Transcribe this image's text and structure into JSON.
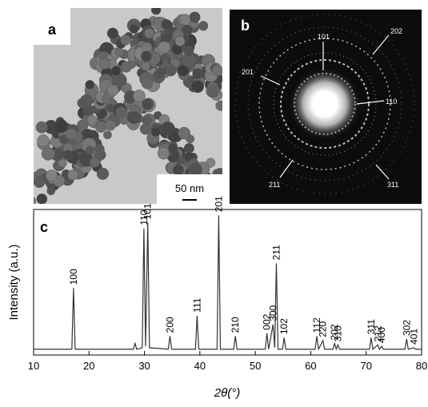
{
  "panels": {
    "a": {
      "label": "a",
      "scale_bar": "50 nm"
    },
    "b": {
      "label": "b",
      "ring_labels": [
        "101",
        "202",
        "201",
        "110",
        "211",
        "311"
      ]
    }
  },
  "chart_data": {
    "type": "line",
    "panel_label": "c",
    "xlabel": "2θ(°)",
    "ylabel": "Intensity (a.u.)",
    "x": [
      10,
      16.9,
      17.2,
      17.5,
      28.0,
      28.3,
      28.6,
      29.6,
      29.9,
      30.2,
      30.6,
      30.9,
      34.3,
      34.6,
      34.9,
      39.2,
      39.5,
      39.8,
      43.1,
      43.4,
      43.7,
      46.1,
      46.4,
      46.7,
      51.8,
      52.1,
      52.4,
      53.2,
      53.5,
      53.8,
      54.1,
      54.9,
      55.2,
      55.5,
      60.8,
      61.1,
      61.4,
      62.2,
      62.5,
      64.0,
      64.3,
      64.6,
      64.9,
      65.2,
      70.6,
      70.9,
      71.2,
      72.1,
      72.4,
      72.8,
      73.1,
      77.0,
      77.3,
      77.6,
      78.6,
      78.9,
      80
    ],
    "values": [
      4,
      4,
      46,
      4,
      4,
      8,
      4,
      5,
      87,
      6,
      91,
      5,
      4,
      13,
      4,
      4,
      27,
      4,
      4,
      96,
      4,
      4,
      13,
      4,
      4,
      15,
      4,
      21,
      5,
      63,
      4,
      4,
      12,
      4,
      4,
      13,
      4,
      10,
      4,
      4,
      8,
      4,
      7,
      4,
      4,
      12,
      4,
      7,
      4,
      6,
      4,
      4,
      11,
      4,
      5,
      4,
      4
    ],
    "color": "#333333",
    "peak_labels": [
      {
        "label": "100",
        "x": 17.2
      },
      {
        "label": "110",
        "x": 29.9
      },
      {
        "label": "101",
        "x": 30.6
      },
      {
        "label": "200",
        "x": 34.6
      },
      {
        "label": "111",
        "x": 39.5
      },
      {
        "label": "201",
        "x": 43.4
      },
      {
        "label": "210",
        "x": 46.4
      },
      {
        "label": "002",
        "x": 52.1
      },
      {
        "label": "300",
        "x": 53.2
      },
      {
        "label": "211",
        "x": 53.8
      },
      {
        "label": "102",
        "x": 55.2
      },
      {
        "label": "112",
        "x": 61.1
      },
      {
        "label": "220",
        "x": 62.2
      },
      {
        "label": "202",
        "x": 64.3
      },
      {
        "label": "310",
        "x": 64.9
      },
      {
        "label": "311",
        "x": 70.9
      },
      {
        "label": "212",
        "x": 72.1
      },
      {
        "label": "400",
        "x": 72.8
      },
      {
        "label": "302",
        "x": 77.3
      },
      {
        "label": "401",
        "x": 78.6
      }
    ],
    "xlim": [
      10,
      80
    ],
    "xticks": [
      10,
      20,
      30,
      40,
      50,
      60,
      70,
      80
    ],
    "ylim": [
      0,
      100
    ]
  }
}
